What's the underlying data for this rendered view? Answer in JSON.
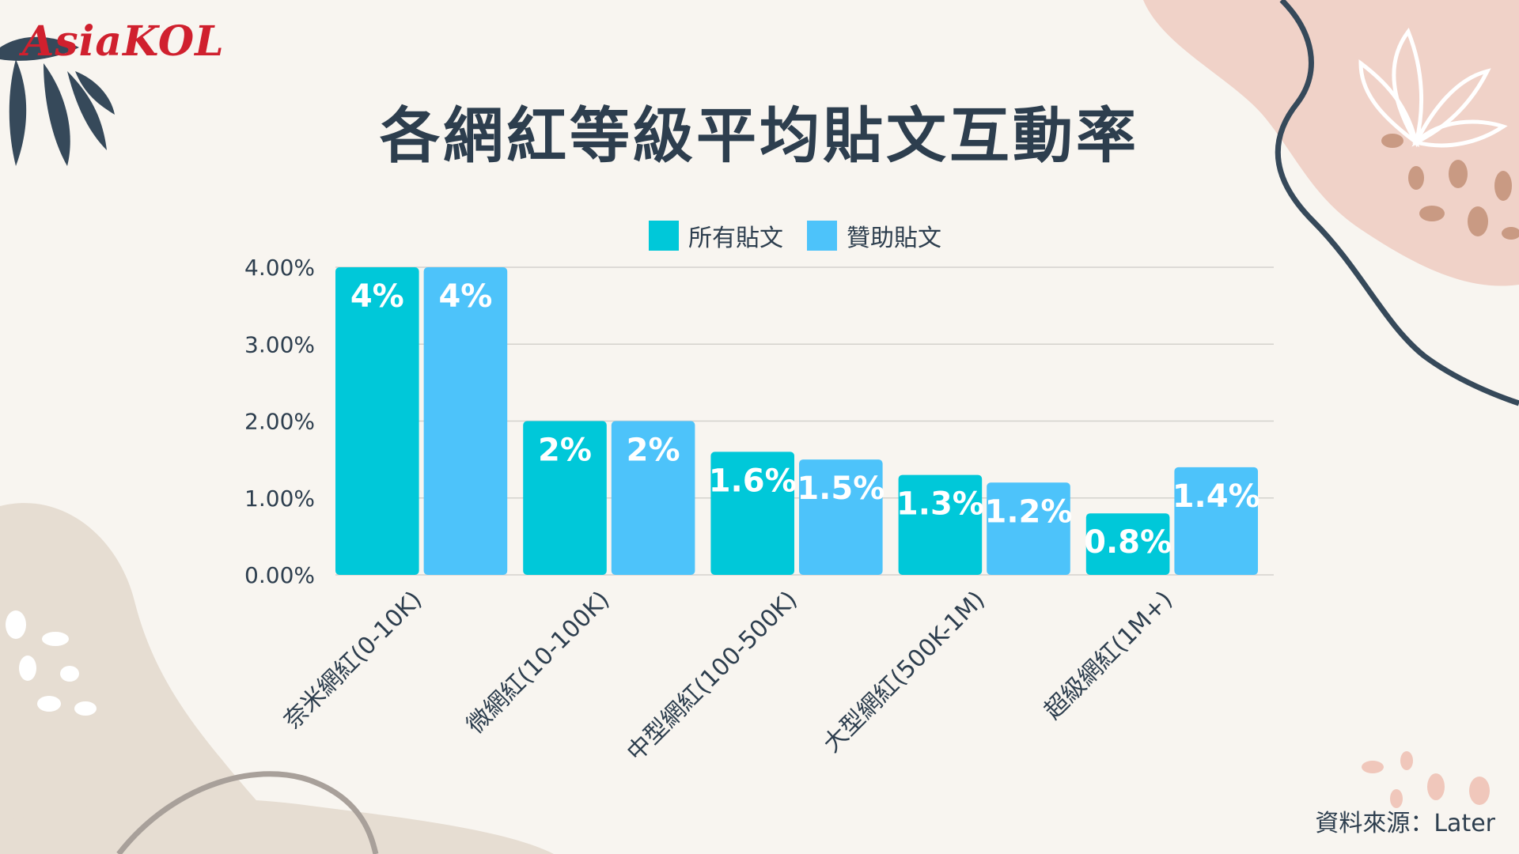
{
  "brand": {
    "logo_text": "AsiaKOL"
  },
  "source_text": "資料來源：Later",
  "colors": {
    "series_1": "#00c8d9",
    "series_2": "#4dc3fa",
    "text": "#2d3e4e",
    "grid": "#d4d2cd"
  },
  "chart_data": {
    "type": "bar",
    "title": "各網紅等級平均貼文互動率",
    "xlabel": "",
    "ylabel": "",
    "categories": [
      "奈米網紅(0-10K)",
      "微網紅(10-100K)",
      "中型網紅(100-500K)",
      "大型網紅(500K-1M)",
      "超級網紅(1M+)"
    ],
    "series": [
      {
        "name": "所有貼文",
        "values": [
          4,
          2,
          1.6,
          1.3,
          0.8
        ],
        "labels": [
          "4%",
          "2%",
          "1.6%",
          "1.3%",
          "0.8%"
        ]
      },
      {
        "name": "贊助貼文",
        "values": [
          4,
          2,
          1.5,
          1.2,
          1.4
        ],
        "labels": [
          "4%",
          "2%",
          "1.5%",
          "1.2%",
          "1.4%"
        ]
      }
    ],
    "ylim": [
      0,
      4
    ],
    "yticks": [
      "0.00%",
      "1.00%",
      "2.00%",
      "3.00%",
      "4.00%"
    ],
    "grid": true,
    "legend": "top-center"
  }
}
